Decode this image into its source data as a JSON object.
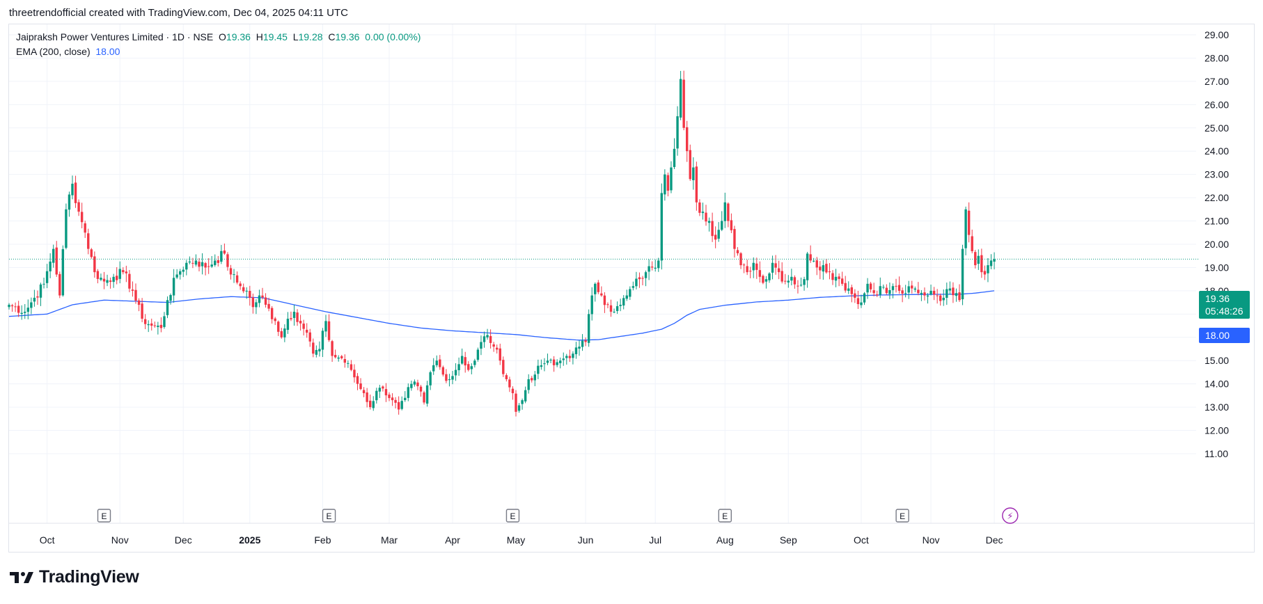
{
  "attribution": "threetrendofficial created with TradingView.com, Dec 04, 2025 04:11 UTC",
  "legend": {
    "symbol": "Jaipraksh Power Ventures Limited · 1D · NSE",
    "o_label": "O",
    "o_value": "19.36",
    "h_label": "H",
    "h_value": "19.45",
    "l_label": "L",
    "l_value": "19.28",
    "c_label": "C",
    "c_value": "19.36",
    "change": "0.00 (0.00%)",
    "ema_label": "EMA (200, close)",
    "ema_value": "18.00"
  },
  "badges": {
    "last_price": "19.36",
    "countdown": "05:48:26",
    "ema": "18.00"
  },
  "branding": {
    "logo_text": "TradingView",
    "logo_icon": "tradingview-logo-icon"
  },
  "colors": {
    "up": "#089981",
    "down": "#f23645",
    "ema": "#2962ff",
    "grid": "#f0f3fa",
    "text": "#131722",
    "earnings_marker": "#787b86",
    "dividend_marker": "#9c27b0"
  },
  "chart_data": {
    "type": "candlestick",
    "title": "Jaipraksh Power Ventures Limited · 1D · NSE",
    "y_ticks": [
      "29.00",
      "28.00",
      "27.00",
      "26.00",
      "25.00",
      "24.00",
      "23.00",
      "22.00",
      "21.00",
      "20.00",
      "19.00",
      "18.00",
      "17.00",
      "16.00",
      "15.00",
      "14.00",
      "13.00",
      "12.00",
      "11.00"
    ],
    "ylim": [
      11.0,
      29.0
    ],
    "y_scale": "linear",
    "x_ticks": [
      {
        "label": "Oct",
        "idx": 12,
        "bold": false
      },
      {
        "label": "Nov",
        "idx": 35,
        "bold": false
      },
      {
        "label": "Dec",
        "idx": 55,
        "bold": false
      },
      {
        "label": "2025",
        "idx": 76,
        "bold": true
      },
      {
        "label": "Feb",
        "idx": 99,
        "bold": false
      },
      {
        "label": "Mar",
        "idx": 120,
        "bold": false
      },
      {
        "label": "Apr",
        "idx": 140,
        "bold": false
      },
      {
        "label": "May",
        "idx": 160,
        "bold": false
      },
      {
        "label": "Jun",
        "idx": 182,
        "bold": false
      },
      {
        "label": "Jul",
        "idx": 204,
        "bold": false
      },
      {
        "label": "Aug",
        "idx": 226,
        "bold": false
      },
      {
        "label": "Sep",
        "idx": 246,
        "bold": false
      },
      {
        "label": "Oct",
        "idx": 269,
        "bold": false
      },
      {
        "label": "Nov",
        "idx": 291,
        "bold": false
      },
      {
        "label": "Dec",
        "idx": 311,
        "bold": false
      }
    ],
    "event_markers": [
      {
        "type": "earnings",
        "label": "E",
        "idx": 30
      },
      {
        "type": "earnings",
        "label": "E",
        "idx": 101
      },
      {
        "type": "earnings",
        "label": "E",
        "idx": 159
      },
      {
        "type": "earnings",
        "label": "E",
        "idx": 226
      },
      {
        "type": "earnings",
        "label": "E",
        "idx": 282
      },
      {
        "type": "dividend",
        "label": "⚡",
        "idx": 316
      }
    ],
    "last_price": 19.36,
    "grid": true,
    "legend_position": "top-left",
    "keypoints": [
      [
        0,
        17.4
      ],
      [
        5,
        17.1
      ],
      [
        8,
        17.7
      ],
      [
        11,
        18.3
      ],
      [
        14,
        19.8
      ],
      [
        16,
        17.8
      ],
      [
        18,
        21.5
      ],
      [
        20,
        22.6
      ],
      [
        22,
        21.4
      ],
      [
        24,
        20.5
      ],
      [
        27,
        18.8
      ],
      [
        30,
        18.4
      ],
      [
        33,
        18.6
      ],
      [
        36,
        18.8
      ],
      [
        39,
        18.0
      ],
      [
        42,
        16.8
      ],
      [
        45,
        16.5
      ],
      [
        48,
        16.4
      ],
      [
        50,
        17.6
      ],
      [
        53,
        18.7
      ],
      [
        56,
        19.2
      ],
      [
        59,
        19.3
      ],
      [
        62,
        19.0
      ],
      [
        65,
        19.3
      ],
      [
        68,
        19.6
      ],
      [
        70,
        18.7
      ],
      [
        73,
        18.2
      ],
      [
        75,
        18.0
      ],
      [
        77,
        17.3
      ],
      [
        79,
        17.8
      ],
      [
        81,
        17.4
      ],
      [
        84,
        16.7
      ],
      [
        86,
        16.0
      ],
      [
        88,
        16.8
      ],
      [
        90,
        17.1
      ],
      [
        92,
        16.6
      ],
      [
        94,
        16.2
      ],
      [
        96,
        15.3
      ],
      [
        98,
        15.5
      ],
      [
        100,
        16.7
      ],
      [
        102,
        15.2
      ],
      [
        105,
        15.1
      ],
      [
        108,
        14.6
      ],
      [
        110,
        14.0
      ],
      [
        112,
        13.6
      ],
      [
        114,
        13.0
      ],
      [
        116,
        13.7
      ],
      [
        118,
        13.8
      ],
      [
        121,
        13.3
      ],
      [
        123,
        12.9
      ],
      [
        125,
        13.4
      ],
      [
        127,
        14.0
      ],
      [
        129,
        13.9
      ],
      [
        131,
        13.2
      ],
      [
        133,
        14.5
      ],
      [
        135,
        15.0
      ],
      [
        137,
        14.4
      ],
      [
        139,
        14.2
      ],
      [
        141,
        14.6
      ],
      [
        143,
        15.2
      ],
      [
        145,
        14.6
      ],
      [
        147,
        15.0
      ],
      [
        149,
        15.8
      ],
      [
        151,
        16.1
      ],
      [
        153,
        15.6
      ],
      [
        155,
        15.0
      ],
      [
        157,
        14.2
      ],
      [
        159,
        13.6
      ],
      [
        160,
        12.8
      ],
      [
        162,
        13.3
      ],
      [
        164,
        14.2
      ],
      [
        166,
        14.4
      ],
      [
        168,
        14.8
      ],
      [
        170,
        15.0
      ],
      [
        172,
        14.8
      ],
      [
        174,
        15.0
      ],
      [
        176,
        15.2
      ],
      [
        178,
        15.3
      ],
      [
        180,
        15.6
      ],
      [
        182,
        15.8
      ],
      [
        183,
        17.0
      ],
      [
        184,
        17.8
      ],
      [
        185,
        18.3
      ],
      [
        187,
        17.8
      ],
      [
        189,
        17.4
      ],
      [
        191,
        17.1
      ],
      [
        193,
        17.4
      ],
      [
        195,
        17.8
      ],
      [
        197,
        18.2
      ],
      [
        199,
        18.5
      ],
      [
        201,
        18.8
      ],
      [
        203,
        19.0
      ],
      [
        205,
        19.3
      ],
      [
        206,
        22.2
      ],
      [
        207,
        23.0
      ],
      [
        208,
        22.3
      ],
      [
        209,
        23.3
      ],
      [
        210,
        24.1
      ],
      [
        211,
        25.5
      ],
      [
        212,
        27.1
      ],
      [
        213,
        25.0
      ],
      [
        214,
        24.0
      ],
      [
        215,
        22.8
      ],
      [
        216,
        23.3
      ],
      [
        217,
        21.8
      ],
      [
        219,
        21.4
      ],
      [
        221,
        21.0
      ],
      [
        223,
        20.2
      ],
      [
        225,
        21.0
      ],
      [
        226,
        21.8
      ],
      [
        227,
        21.0
      ],
      [
        228,
        20.6
      ],
      [
        229,
        19.8
      ],
      [
        231,
        19.1
      ],
      [
        233,
        18.8
      ],
      [
        235,
        19.2
      ],
      [
        237,
        18.6
      ],
      [
        239,
        18.5
      ],
      [
        241,
        19.2
      ],
      [
        243,
        18.8
      ],
      [
        245,
        18.4
      ],
      [
        247,
        18.6
      ],
      [
        249,
        18.2
      ],
      [
        251,
        18.5
      ],
      [
        252,
        19.6
      ],
      [
        253,
        19.3
      ],
      [
        255,
        19.0
      ],
      [
        257,
        19.1
      ],
      [
        259,
        18.8
      ],
      [
        261,
        18.6
      ],
      [
        263,
        18.3
      ],
      [
        265,
        18.1
      ],
      [
        267,
        17.7
      ],
      [
        269,
        17.5
      ],
      [
        271,
        18.3
      ],
      [
        273,
        17.9
      ],
      [
        275,
        18.2
      ],
      [
        277,
        17.9
      ],
      [
        279,
        18.2
      ],
      [
        281,
        18.0
      ],
      [
        283,
        17.9
      ],
      [
        285,
        18.1
      ],
      [
        287,
        17.9
      ],
      [
        289,
        17.8
      ],
      [
        291,
        18.0
      ],
      [
        293,
        17.8
      ],
      [
        295,
        17.7
      ],
      [
        297,
        18.1
      ],
      [
        299,
        17.9
      ],
      [
        300,
        17.6
      ],
      [
        301,
        19.8
      ],
      [
        302,
        21.5
      ],
      [
        303,
        20.4
      ],
      [
        304,
        19.7
      ],
      [
        305,
        19.1
      ],
      [
        306,
        19.5
      ],
      [
        307,
        18.8
      ],
      [
        308,
        18.7
      ],
      [
        309,
        19.1
      ],
      [
        310,
        19.3
      ],
      [
        311,
        19.36
      ]
    ],
    "ema_keypoints": [
      [
        0,
        16.9
      ],
      [
        12,
        17.0
      ],
      [
        20,
        17.4
      ],
      [
        30,
        17.6
      ],
      [
        40,
        17.55
      ],
      [
        50,
        17.5
      ],
      [
        60,
        17.65
      ],
      [
        70,
        17.75
      ],
      [
        80,
        17.7
      ],
      [
        90,
        17.4
      ],
      [
        100,
        17.1
      ],
      [
        110,
        16.85
      ],
      [
        120,
        16.6
      ],
      [
        130,
        16.4
      ],
      [
        140,
        16.28
      ],
      [
        150,
        16.2
      ],
      [
        160,
        16.12
      ],
      [
        170,
        15.98
      ],
      [
        180,
        15.88
      ],
      [
        186,
        15.9
      ],
      [
        192,
        16.02
      ],
      [
        200,
        16.18
      ],
      [
        206,
        16.35
      ],
      [
        210,
        16.6
      ],
      [
        214,
        16.95
      ],
      [
        218,
        17.2
      ],
      [
        226,
        17.38
      ],
      [
        236,
        17.52
      ],
      [
        246,
        17.6
      ],
      [
        256,
        17.72
      ],
      [
        266,
        17.78
      ],
      [
        276,
        17.82
      ],
      [
        286,
        17.84
      ],
      [
        296,
        17.85
      ],
      [
        300,
        17.85
      ],
      [
        305,
        17.9
      ],
      [
        311,
        18.0
      ]
    ]
  }
}
